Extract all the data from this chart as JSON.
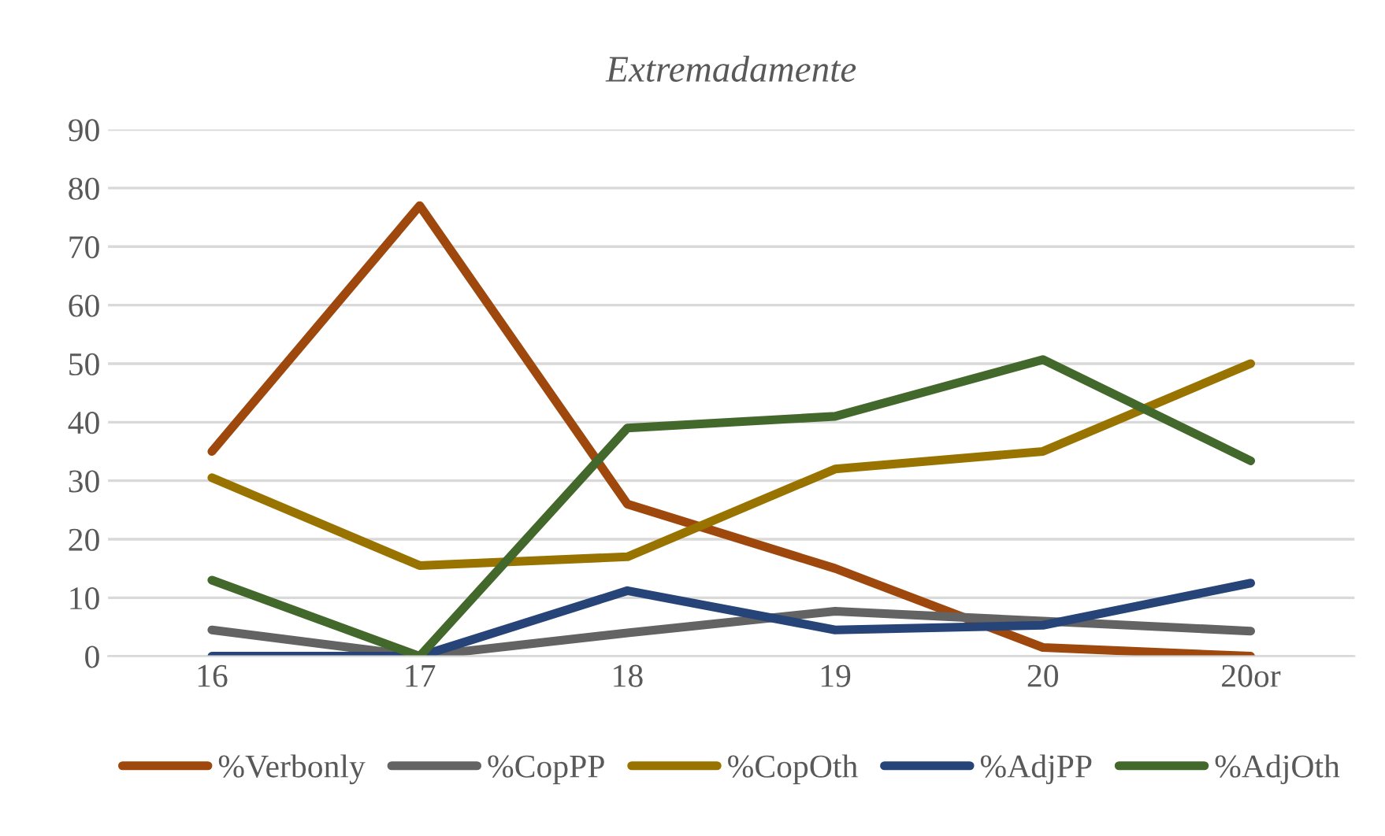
{
  "chart_data": {
    "type": "line",
    "title": "Extremadamente",
    "categories": [
      "16",
      "17",
      "18",
      "19",
      "20",
      "20or"
    ],
    "series": [
      {
        "name": "%Verbonly",
        "color": "#9e480e",
        "values": [
          35,
          77,
          26,
          15,
          1.5,
          0
        ]
      },
      {
        "name": "%CopPP",
        "color": "#636363",
        "values": [
          4.5,
          0,
          4,
          7.7,
          6,
          4.3
        ]
      },
      {
        "name": "%CopOth",
        "color": "#997300",
        "values": [
          30.5,
          15.5,
          17,
          32,
          35,
          50
        ]
      },
      {
        "name": "%AdjPP",
        "color": "#264478",
        "values": [
          0,
          0,
          11.2,
          4.5,
          5.3,
          12.5
        ]
      },
      {
        "name": "%AdjOth",
        "color": "#43682b",
        "values": [
          13,
          0,
          39,
          41,
          50.7,
          33.4
        ]
      }
    ],
    "ylim": [
      0,
      90
    ],
    "yticks": [
      0,
      10,
      20,
      30,
      40,
      50,
      60,
      70,
      80,
      90
    ],
    "grid": "y",
    "legend": "bottom",
    "marker": "none",
    "line_style": "solid"
  }
}
